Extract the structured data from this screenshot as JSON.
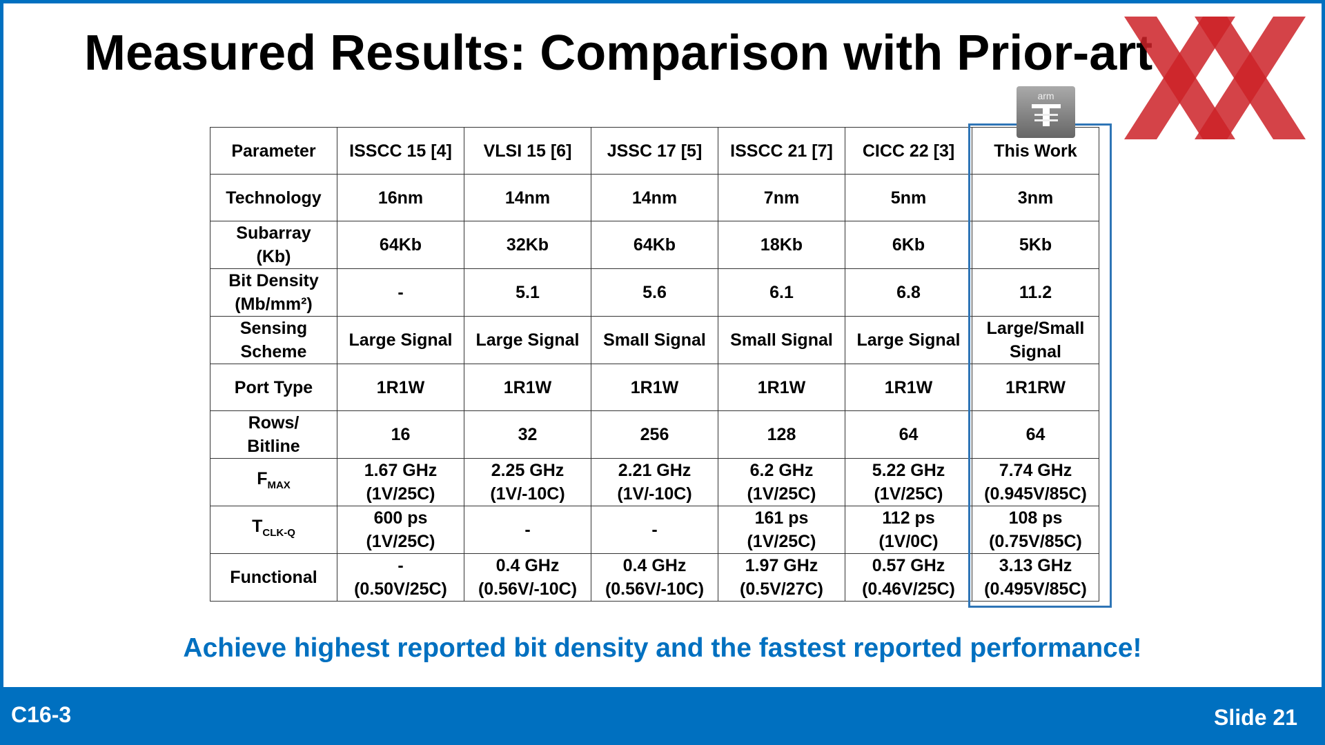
{
  "header": {
    "title": "Measured Results: Comparison with Prior-art",
    "logo_text": "arm"
  },
  "table": {
    "header": [
      "Parameter",
      "ISSCC 15 [4]",
      "VLSI 15 [6]",
      "JSSC 17 [5]",
      "ISSCC 21 [7]",
      "CICC 22 [3]",
      "This Work"
    ],
    "rows": [
      [
        "Technology",
        "16nm",
        "14nm",
        "14nm",
        "7nm",
        "5nm",
        "3nm"
      ],
      [
        "Subarray\n(Kb)",
        "64Kb",
        "32Kb",
        "64Kb",
        "18Kb",
        "6Kb",
        "5Kb"
      ],
      [
        "Bit Density\n(Mb/mm²)",
        "-",
        "5.1",
        "5.6",
        "6.1",
        "6.8",
        "11.2"
      ],
      [
        "Sensing\nScheme",
        "Large Signal",
        "Large Signal",
        "Small Signal",
        "Small Signal",
        "Large Signal",
        "Large/Small\nSignal"
      ],
      [
        "Port Type",
        "1R1W",
        "1R1W",
        "1R1W",
        "1R1W",
        "1R1W",
        "1R1RW"
      ],
      [
        "Rows/\nBitline",
        "16",
        "32",
        "256",
        "128",
        "64",
        "64"
      ],
      [
        {
          "text": "F",
          "sub": "MAX"
        },
        "1.67 GHz\n(1V/25C)",
        "2.25 GHz\n(1V/-10C)",
        "2.21 GHz\n(1V/-10C)",
        "6.2 GHz\n(1V/25C)",
        "5.22 GHz\n(1V/25C)",
        "7.74 GHz\n(0.945V/85C)"
      ],
      [
        {
          "text": "T",
          "sub": "CLK-Q"
        },
        "600 ps\n(1V/25C)",
        "-",
        "-",
        "161 ps\n(1V/25C)",
        "112 ps\n(1V/0C)",
        "108 ps\n(0.75V/85C)"
      ],
      [
        "Functional",
        "-\n(0.50V/25C)",
        "0.4 GHz\n(0.56V/-10C)",
        "0.4 GHz\n(0.56V/-10C)",
        "1.97 GHz\n(0.5V/27C)",
        "0.57 GHz\n(0.46V/25C)",
        "3.13 GHz\n(0.495V/85C)"
      ]
    ]
  },
  "caption": "Achieve highest reported bit density and the fastest reported performance!",
  "footer": {
    "left": "C16-3",
    "right": "Slide 21"
  }
}
